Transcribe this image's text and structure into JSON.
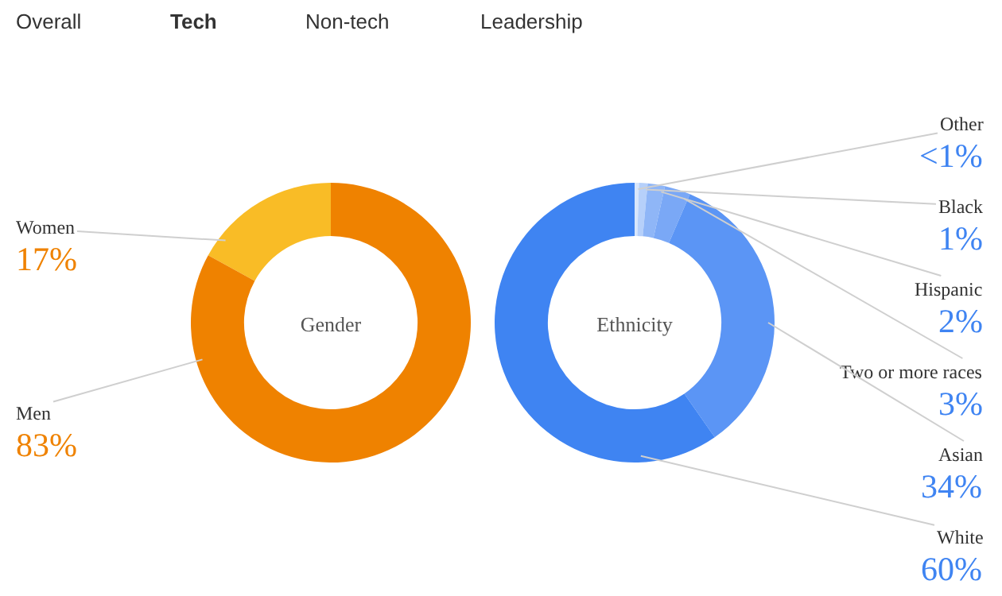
{
  "chart_data": [
    {
      "type": "donut",
      "title": "Gender",
      "annotations": [
        "Overall",
        "Tech",
        "Non-tech",
        "Leadership"
      ],
      "categories": [
        "Women",
        "Men"
      ],
      "values": [
        17,
        83
      ],
      "value_labels": [
        "17%",
        "83%"
      ],
      "colors": [
        "#f9bc26",
        "#ef8200"
      ]
    },
    {
      "type": "donut",
      "title": "Ethnicity",
      "categories": [
        "Other",
        "Black",
        "Hispanic",
        "Two or more races",
        "Asian",
        "White"
      ],
      "values": [
        0.5,
        1,
        2,
        3,
        34,
        60
      ],
      "value_labels": [
        "<1%",
        "1%",
        "2%",
        "3%",
        "34%",
        "60%"
      ],
      "colors": [
        "#d8e6fb",
        "#b6d0fa",
        "#8fb6f7",
        "#7aa8f6",
        "#5b95f5",
        "#3f84f2"
      ]
    }
  ]
}
